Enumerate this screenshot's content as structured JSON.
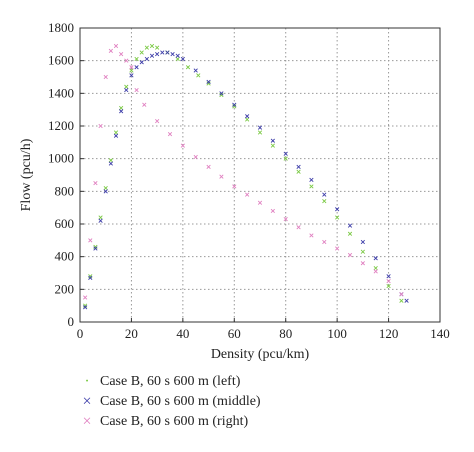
{
  "chart_data": {
    "type": "scatter",
    "title": "",
    "xlabel": "Density (pcu/km)",
    "ylabel": "Flow (pcu/h)",
    "xlim": [
      0,
      140
    ],
    "ylim": [
      0,
      1800
    ],
    "x_ticks": [
      "0",
      "20",
      "40",
      "60",
      "80",
      "100",
      "120",
      "140"
    ],
    "y_ticks": [
      "0",
      "200",
      "400",
      "600",
      "800",
      "1000",
      "1200",
      "1400",
      "1600",
      "1800"
    ],
    "grid": true,
    "legend_position": "bottom",
    "series": [
      {
        "name": "Case B, 60 s 600 m (left)",
        "color": "#7ac943",
        "marker": "x",
        "x": [
          2,
          4,
          6,
          8,
          10,
          12,
          14,
          16,
          18,
          20,
          22,
          24,
          26,
          28,
          30,
          34,
          38,
          42,
          46,
          50,
          55,
          60,
          65,
          70,
          75,
          80,
          85,
          90,
          95,
          100,
          105,
          110,
          115,
          120,
          125
        ],
        "y": [
          100,
          280,
          460,
          640,
          820,
          990,
          1160,
          1310,
          1440,
          1540,
          1610,
          1650,
          1680,
          1690,
          1680,
          1650,
          1610,
          1560,
          1510,
          1460,
          1390,
          1320,
          1240,
          1160,
          1080,
          1000,
          920,
          830,
          740,
          640,
          540,
          430,
          330,
          220,
          130
        ]
      },
      {
        "name": "Case B, 60 s 600 m (middle)",
        "color": "#3b3ba8",
        "marker": "x",
        "x": [
          2,
          4,
          6,
          8,
          10,
          12,
          14,
          16,
          18,
          20,
          22,
          24,
          26,
          28,
          30,
          32,
          34,
          36,
          38,
          40,
          45,
          50,
          55,
          60,
          65,
          70,
          75,
          80,
          85,
          90,
          95,
          100,
          105,
          110,
          115,
          120,
          125,
          127
        ],
        "y": [
          90,
          270,
          450,
          620,
          800,
          970,
          1140,
          1290,
          1420,
          1510,
          1560,
          1590,
          1610,
          1630,
          1640,
          1650,
          1650,
          1640,
          1630,
          1610,
          1540,
          1470,
          1400,
          1330,
          1260,
          1190,
          1110,
          1030,
          950,
          870,
          780,
          690,
          590,
          490,
          390,
          280,
          170,
          130
        ]
      },
      {
        "name": "Case B, 60 s 600 m (right)",
        "color": "#e07fc0",
        "marker": "x",
        "x": [
          2,
          4,
          6,
          8,
          10,
          12,
          14,
          16,
          18,
          20,
          22,
          25,
          30,
          35,
          40,
          45,
          50,
          55,
          60,
          65,
          70,
          75,
          80,
          85,
          90,
          95,
          100,
          105,
          110,
          115,
          120,
          125
        ],
        "y": [
          150,
          500,
          850,
          1200,
          1500,
          1660,
          1690,
          1640,
          1600,
          1560,
          1420,
          1330,
          1230,
          1150,
          1080,
          1010,
          950,
          890,
          830,
          780,
          730,
          680,
          630,
          580,
          530,
          490,
          450,
          410,
          360,
          310,
          250,
          170
        ]
      }
    ]
  }
}
